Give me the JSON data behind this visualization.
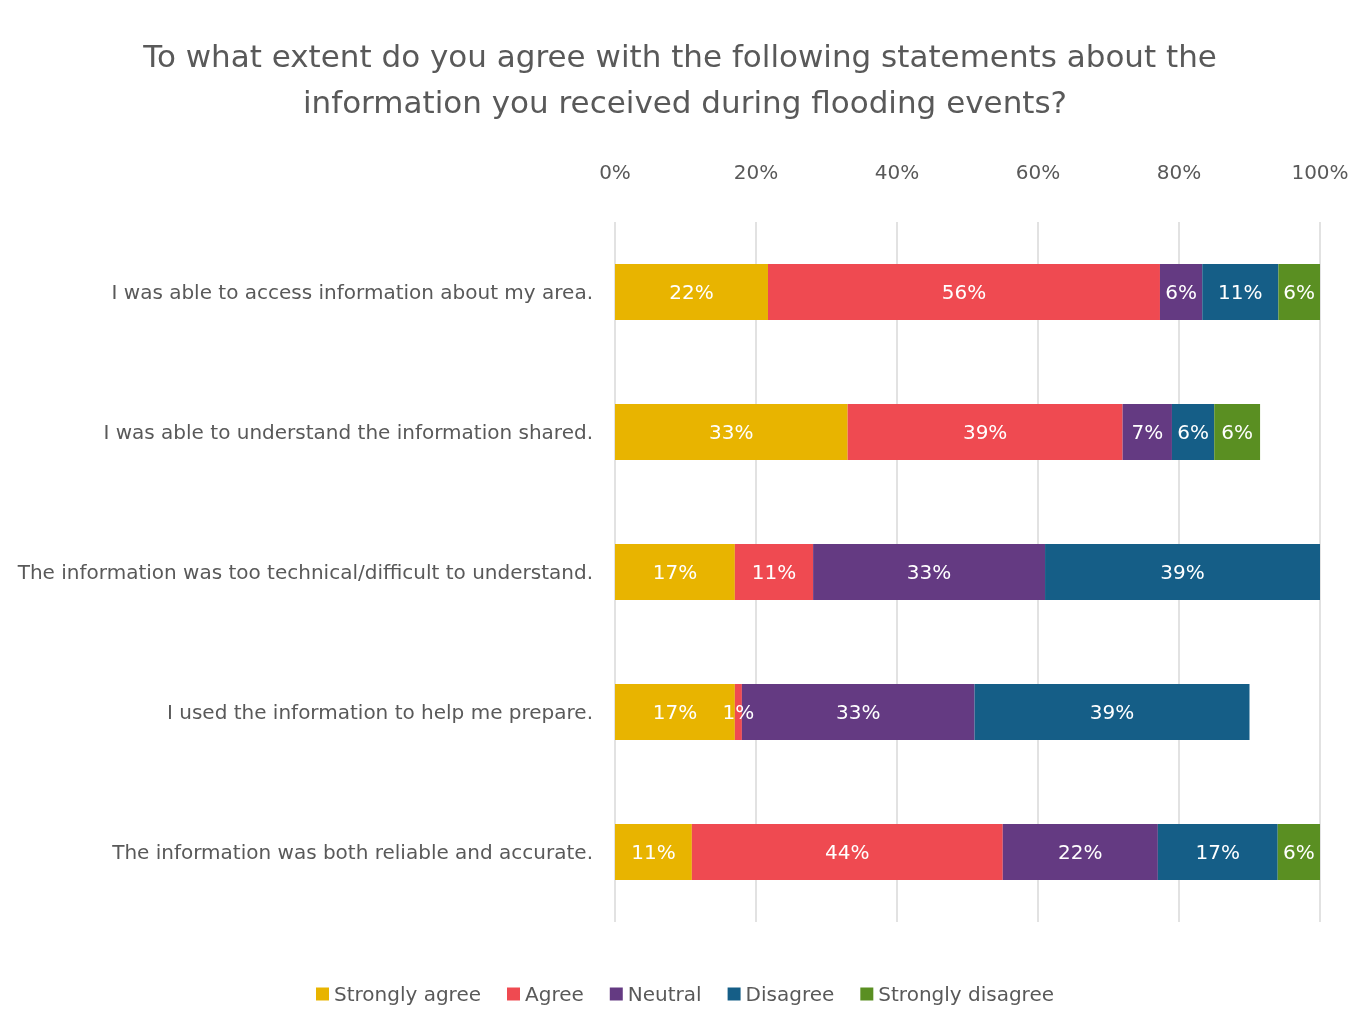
{
  "chart_data": {
    "type": "bar",
    "orientation": "horizontal",
    "stacked": true,
    "title": "To what extent do you agree with the following statements about the information you received during flooding events?",
    "categories": [
      "I was able to access information about my area.",
      "I was able to understand the information shared.",
      "The information was too technical/difficult to understand.",
      "I used the information to help me prepare.",
      "The information was both reliable and accurate."
    ],
    "xlim": [
      0,
      100
    ],
    "xticks": [
      {
        "value": 0,
        "label": "0%"
      },
      {
        "value": 20,
        "label": "20%"
      },
      {
        "value": 40,
        "label": "40%"
      },
      {
        "value": 60,
        "label": "60%"
      },
      {
        "value": 80,
        "label": "80%"
      },
      {
        "value": 100,
        "label": "100%"
      }
    ],
    "grid": "x",
    "legend": "bottom",
    "series": [
      {
        "name": "Strongly agree",
        "color": "#e8b400",
        "values": [
          21.7,
          33,
          17.0,
          17,
          10.9
        ],
        "value_labels": [
          "22%",
          "33%",
          "17%",
          "17%",
          "11%"
        ]
      },
      {
        "name": "Agree",
        "color": "#ef4a51",
        "values": [
          55.6,
          39,
          11.1,
          1,
          44.1
        ],
        "value_labels": [
          "56%",
          "39%",
          "11%",
          "1%",
          "44%"
        ]
      },
      {
        "name": "Neutral",
        "color": "#643a82",
        "values": [
          6.0,
          7,
          32.9,
          33,
          22.0
        ],
        "value_labels": [
          "6%",
          "7%",
          "33%",
          "33%",
          "22%"
        ]
      },
      {
        "name": "Disagree",
        "color": "#155e87",
        "values": [
          10.8,
          6,
          39.0,
          39,
          17.0
        ],
        "value_labels": [
          "11%",
          "6%",
          "39%",
          "39%",
          "17%"
        ]
      },
      {
        "name": "Strongly disagree",
        "color": "#5a8f22",
        "values": [
          5.9,
          6.5,
          null,
          null,
          6.0
        ],
        "value_labels": [
          "6%",
          "6%",
          null,
          null,
          "6%"
        ]
      }
    ]
  }
}
